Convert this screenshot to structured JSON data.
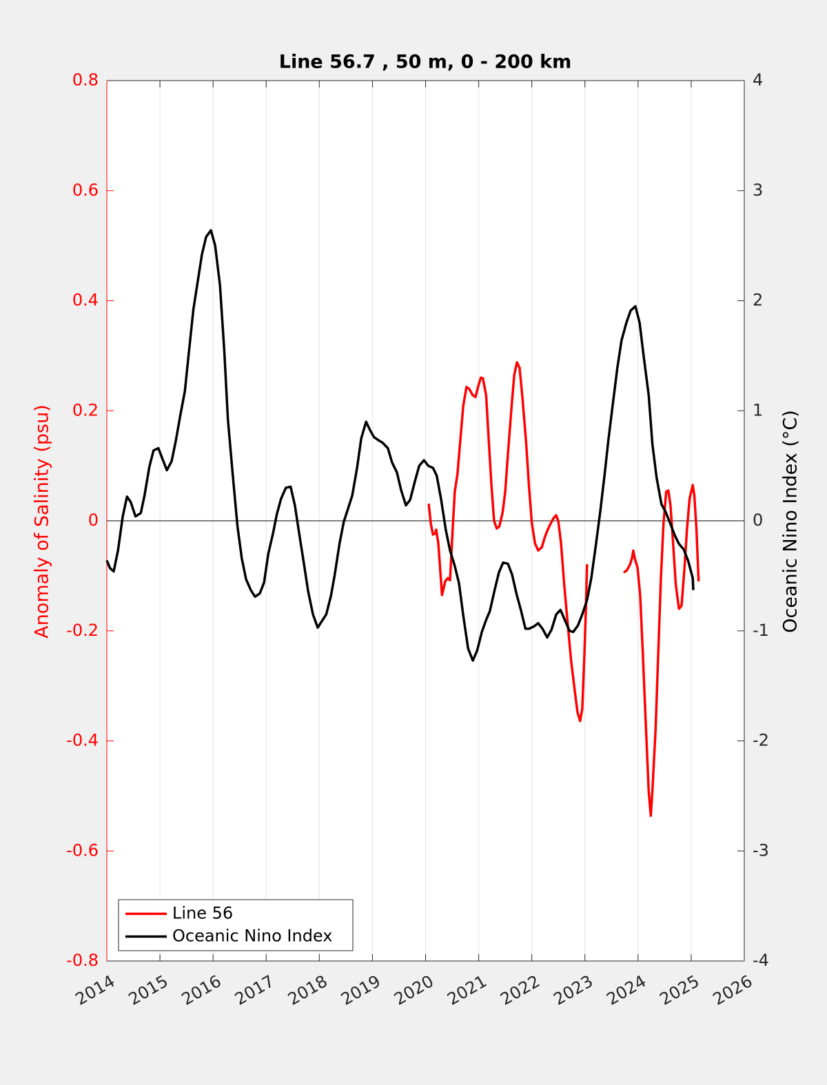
{
  "chart_data": {
    "type": "line",
    "title": "Line 56.7 , 50 m, 0 - 200 km",
    "ylabel": "Anomaly of Salinity (psu)",
    "y2label": "Oceanic Nino Index (°C)",
    "xlim": [
      2014,
      2026
    ],
    "xticks": [
      2014,
      2015,
      2016,
      2017,
      2018,
      2019,
      2020,
      2021,
      2022,
      2023,
      2024,
      2025,
      2026
    ],
    "ylim": [
      -0.8,
      0.8
    ],
    "yticks": [
      -0.8,
      -0.6,
      -0.4,
      -0.2,
      0,
      0.2,
      0.4,
      0.6,
      0.8
    ],
    "y2lim": [
      -4,
      4
    ],
    "y2ticks": [
      -4,
      -3,
      -2,
      -1,
      0,
      1,
      2,
      3,
      4
    ],
    "grid": "x",
    "hline": 0,
    "legend": "lower left",
    "ylabel_color": "#ff0000",
    "series": [
      {
        "name": "Line 56",
        "color": "#ff0000",
        "axis": "y",
        "x": [
          2020.06,
          2020.1,
          2020.14,
          2020.18,
          2020.2,
          2020.24,
          2020.31,
          2020.37,
          2020.42,
          2020.46,
          2020.51,
          2020.55,
          2020.6,
          2020.66,
          2020.71,
          2020.77,
          2020.82,
          2020.89,
          2020.94,
          2020.99,
          2021.04,
          2021.08,
          2021.14,
          2021.19,
          2021.24,
          2021.29,
          2021.34,
          2021.39,
          2021.45,
          2021.5,
          2021.55,
          2021.62,
          2021.67,
          2021.72,
          2021.77,
          2021.82,
          2021.89,
          2021.95,
          2022.0,
          2022.06,
          2022.12,
          2022.19,
          2022.24,
          2022.3,
          2022.35,
          2022.41,
          2022.46,
          2022.5,
          2022.55,
          2022.61,
          2022.68,
          2022.74,
          2022.81,
          2022.86,
          2022.91,
          2022.95,
          2022.99,
          2023.02,
          2023.04,
          null,
          2023.73,
          2023.79,
          2023.85,
          2023.89,
          2023.91,
          2023.94,
          2023.99,
          2024.04,
          2024.09,
          2024.15,
          2024.2,
          2024.24,
          2024.27,
          2024.33,
          2024.38,
          2024.43,
          2024.48,
          2024.53,
          2024.57,
          2024.61,
          2024.66,
          2024.71,
          2024.77,
          2024.82,
          2024.87,
          2024.92,
          2024.97,
          2025.03,
          2025.06,
          2025.1,
          2025.14
        ],
        "values": [
          0.031,
          -0.006,
          -0.025,
          -0.023,
          -0.016,
          -0.041,
          -0.135,
          -0.11,
          -0.104,
          -0.108,
          -0.016,
          0.053,
          0.084,
          0.153,
          0.209,
          0.243,
          0.24,
          0.228,
          0.225,
          0.244,
          0.26,
          0.259,
          0.228,
          0.146,
          0.065,
          0,
          -0.014,
          -0.01,
          0.015,
          0.053,
          0.121,
          0.209,
          0.265,
          0.288,
          0.278,
          0.228,
          0.146,
          0.059,
          -0.004,
          -0.041,
          -0.054,
          -0.048,
          -0.031,
          -0.016,
          -0.006,
          0.005,
          0.01,
          -0.001,
          -0.041,
          -0.116,
          -0.192,
          -0.254,
          -0.31,
          -0.348,
          -0.364,
          -0.342,
          -0.242,
          -0.154,
          -0.079,
          null,
          -0.094,
          -0.09,
          -0.079,
          -0.066,
          -0.054,
          -0.069,
          -0.085,
          -0.135,
          -0.242,
          -0.379,
          -0.492,
          -0.536,
          -0.492,
          -0.379,
          -0.242,
          -0.104,
          -0.004,
          0.053,
          0.055,
          0.028,
          -0.041,
          -0.116,
          -0.16,
          -0.154,
          -0.091,
          -0.016,
          0.04,
          0.065,
          0.046,
          -0.016,
          -0.11
        ]
      },
      {
        "name": "Oceanic Nino Index",
        "color": "#000000",
        "axis": "y2",
        "x": [
          2014.0,
          2014.06,
          2014.13,
          2014.21,
          2014.3,
          2014.38,
          2014.45,
          2014.54,
          2014.64,
          2014.71,
          2014.8,
          2014.88,
          2014.97,
          2015.05,
          2015.13,
          2015.22,
          2015.3,
          2015.38,
          2015.47,
          2015.54,
          2015.63,
          2015.71,
          2015.79,
          2015.87,
          2015.96,
          2016.04,
          2016.13,
          2016.21,
          2016.28,
          2016.37,
          2016.46,
          2016.54,
          2016.62,
          2016.71,
          2016.79,
          2016.88,
          2016.96,
          2017.04,
          2017.13,
          2017.2,
          2017.28,
          2017.37,
          2017.46,
          2017.54,
          2017.62,
          2017.71,
          2017.79,
          2017.88,
          2017.97,
          2018.05,
          2018.13,
          2018.22,
          2018.29,
          2018.38,
          2018.46,
          2018.54,
          2018.62,
          2018.71,
          2018.79,
          2018.88,
          2018.96,
          2019.03,
          2019.12,
          2019.19,
          2019.29,
          2019.37,
          2019.46,
          2019.54,
          2019.63,
          2019.71,
          2019.8,
          2019.88,
          2019.97,
          2020.05,
          2020.14,
          2020.21,
          2020.29,
          2020.38,
          2020.46,
          2020.55,
          2020.63,
          2020.71,
          2020.8,
          2020.89,
          2020.97,
          2021.06,
          2021.14,
          2021.21,
          2021.3,
          2021.38,
          2021.46,
          2021.55,
          2021.63,
          2021.71,
          2021.8,
          2021.88,
          2021.95,
          2022.04,
          2022.12,
          2022.2,
          2022.29,
          2022.37,
          2022.46,
          2022.54,
          2022.63,
          2022.71,
          2022.78,
          2022.87,
          2022.95,
          2023.04,
          2023.12,
          2023.2,
          2023.29,
          2023.37,
          2023.44,
          2023.53,
          2023.61,
          2023.69,
          2023.78,
          2023.86,
          2023.95,
          2024.03,
          2024.11,
          2024.2,
          2024.27,
          2024.35,
          2024.44,
          2024.52,
          2024.61,
          2024.69,
          2024.77,
          2024.86,
          2024.94,
          2025.03,
          2025.04
        ],
        "values": [
          -0.36,
          -0.43,
          -0.46,
          -0.27,
          0.04,
          0.22,
          0.17,
          0.04,
          0.07,
          0.23,
          0.49,
          0.64,
          0.66,
          0.56,
          0.46,
          0.54,
          0.73,
          0.95,
          1.18,
          1.51,
          1.92,
          2.17,
          2.42,
          2.58,
          2.64,
          2.5,
          2.14,
          1.55,
          0.92,
          0.42,
          -0.05,
          -0.34,
          -0.53,
          -0.63,
          -0.69,
          -0.66,
          -0.56,
          -0.3,
          -0.11,
          0.06,
          0.2,
          0.3,
          0.31,
          0.14,
          -0.11,
          -0.39,
          -0.64,
          -0.85,
          -0.97,
          -0.91,
          -0.85,
          -0.68,
          -0.49,
          -0.21,
          -0.01,
          0.11,
          0.23,
          0.48,
          0.75,
          0.9,
          0.82,
          0.76,
          0.73,
          0.71,
          0.66,
          0.53,
          0.44,
          0.28,
          0.14,
          0.19,
          0.36,
          0.5,
          0.55,
          0.5,
          0.48,
          0.41,
          0.2,
          -0.08,
          -0.27,
          -0.41,
          -0.57,
          -0.86,
          -1.16,
          -1.27,
          -1.18,
          -1.01,
          -0.9,
          -0.82,
          -0.63,
          -0.47,
          -0.38,
          -0.39,
          -0.49,
          -0.66,
          -0.82,
          -0.98,
          -0.98,
          -0.96,
          -0.93,
          -0.98,
          -1.06,
          -0.99,
          -0.85,
          -0.81,
          -0.91,
          -1.0,
          -1.01,
          -0.95,
          -0.85,
          -0.72,
          -0.52,
          -0.24,
          0.09,
          0.42,
          0.73,
          1.08,
          1.39,
          1.64,
          1.8,
          1.91,
          1.95,
          1.8,
          1.48,
          1.14,
          0.7,
          0.39,
          0.15,
          0.08,
          -0.03,
          -0.13,
          -0.21,
          -0.26,
          -0.36,
          -0.52,
          -0.63
        ]
      }
    ]
  }
}
